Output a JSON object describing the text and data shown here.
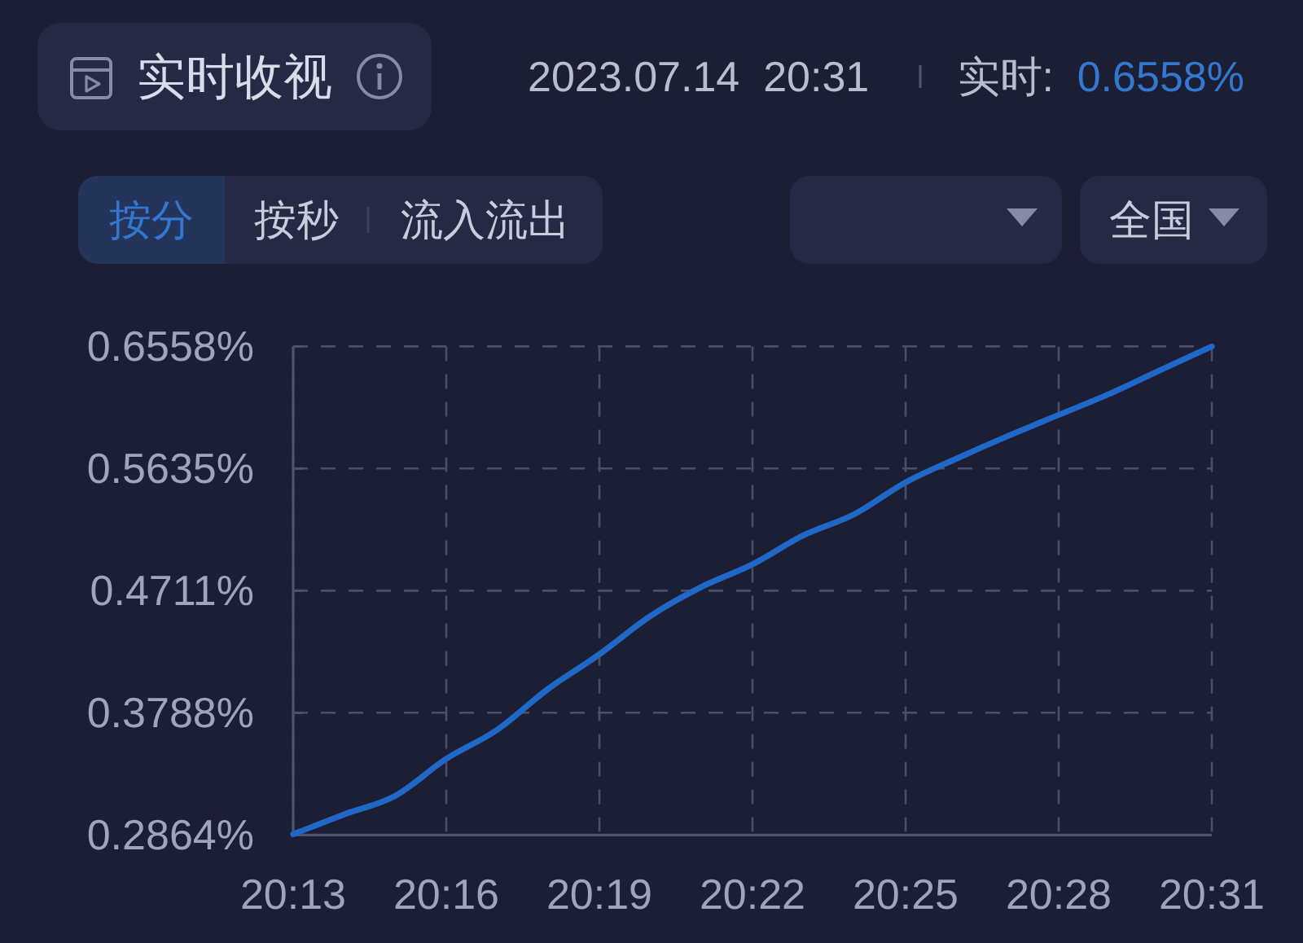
{
  "chart_data": {
    "type": "line",
    "title": "实时收视",
    "annotations": [
      "2023.07.14  20:31",
      "实时:",
      "0.6558%",
      "按分",
      "按秒",
      "流入流出",
      "全国"
    ],
    "x": [
      "2023-07-14T20:13",
      "2023-07-14T20:14",
      "2023-07-14T20:15",
      "2023-07-14T20:16",
      "2023-07-14T20:17",
      "2023-07-14T20:18",
      "2023-07-14T20:19",
      "2023-07-14T20:20",
      "2023-07-14T20:21",
      "2023-07-14T20:22",
      "2023-07-14T20:23",
      "2023-07-14T20:24",
      "2023-07-14T20:25",
      "2023-07-14T20:26",
      "2023-07-14T20:27",
      "2023-07-14T20:28",
      "2023-07-14T20:29",
      "2023-07-14T20:30",
      "2023-07-14T20:31"
    ],
    "series": [
      {
        "color": "#2068c8",
        "values": [
          0.287,
          0.302,
          0.316,
          0.344,
          0.366,
          0.397,
          0.423,
          0.452,
          0.474,
          0.491,
          0.513,
          0.529,
          0.553,
          0.571,
          0.588,
          0.604,
          0.62,
          0.638,
          0.6558
        ]
      }
    ],
    "xlim": [
      "2023-07-14T20:13",
      "2023-07-14T20:31"
    ],
    "xticks": [
      {
        "value": "2023-07-14T20:13",
        "label": "20:13"
      },
      {
        "value": "2023-07-14T20:16",
        "label": "20:16"
      },
      {
        "value": "2023-07-14T20:19",
        "label": "20:19"
      },
      {
        "value": "2023-07-14T20:22",
        "label": "20:22"
      },
      {
        "value": "2023-07-14T20:25",
        "label": "20:25"
      },
      {
        "value": "2023-07-14T20:28",
        "label": "20:28"
      },
      {
        "value": "2023-07-14T20:31",
        "label": "20:31"
      }
    ],
    "ylim": [
      0.2864,
      0.6558
    ],
    "yticks": [
      {
        "value": 0.2864,
        "label": "0.2864%"
      },
      {
        "value": 0.3788,
        "label": "0.3788%"
      },
      {
        "value": 0.4711,
        "label": "0.4711%"
      },
      {
        "value": 0.5635,
        "label": "0.5635%"
      },
      {
        "value": 0.6558,
        "label": "0.6558%"
      }
    ],
    "grid": true
  }
}
